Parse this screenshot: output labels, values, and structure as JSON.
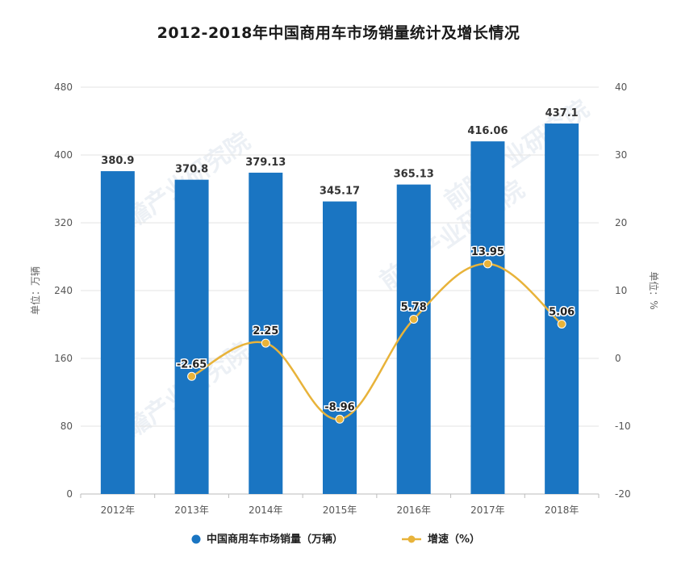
{
  "title": "2012-2018年中国商用车市场销量统计及增长情况",
  "watermark": "前瞻产业研究院",
  "chart_data": {
    "type": "bar",
    "categories": [
      "2012年",
      "2013年",
      "2014年",
      "2015年",
      "2016年",
      "2017年",
      "2018年"
    ],
    "series": [
      {
        "name": "中国商用车市场销量（万辆）",
        "type": "bar",
        "axis": "left",
        "color": "#1a75c2",
        "values": [
          380.9,
          370.8,
          379.13,
          345.17,
          365.13,
          416.06,
          437.1
        ],
        "labels": [
          "380.9",
          "370.8",
          "379.13",
          "345.17",
          "365.13",
          "416.06",
          "437.1"
        ]
      },
      {
        "name": "增速（%）",
        "type": "line",
        "axis": "right",
        "color": "#e8b33a",
        "values": [
          null,
          -2.65,
          2.25,
          -8.96,
          5.78,
          13.95,
          5.06
        ],
        "labels": [
          "",
          "-2.65",
          "2.25",
          "-8.96",
          "5.78",
          "13.95",
          "5.06"
        ]
      }
    ],
    "y_left": {
      "label": "单位：万辆",
      "ylim": [
        0,
        480
      ],
      "ticks": [
        "0",
        "80",
        "160",
        "240",
        "320",
        "400",
        "480"
      ]
    },
    "y_right": {
      "label": "单位：%",
      "ylim": [
        -20,
        40
      ],
      "ticks": [
        "-20",
        "-10",
        "0",
        "10",
        "20",
        "30",
        "40"
      ]
    },
    "grid": true,
    "legend": "bottom"
  }
}
